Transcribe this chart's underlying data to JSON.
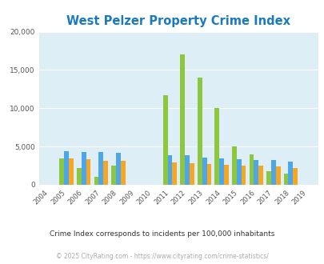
{
  "title": "West Pelzer Property Crime Index",
  "years": [
    2004,
    2005,
    2006,
    2007,
    2008,
    2009,
    2010,
    2011,
    2012,
    2013,
    2014,
    2015,
    2016,
    2017,
    2018,
    2019
  ],
  "west_pelzer": [
    0,
    3400,
    2200,
    1000,
    2500,
    0,
    0,
    11700,
    17000,
    14000,
    10000,
    5000,
    4000,
    1800,
    1500,
    0
  ],
  "south_carolina": [
    0,
    4400,
    4300,
    4300,
    4200,
    0,
    0,
    3900,
    3900,
    3600,
    3500,
    3300,
    3200,
    3200,
    3000,
    0
  ],
  "national": [
    0,
    3500,
    3300,
    3100,
    3100,
    0,
    0,
    2900,
    2800,
    2700,
    2600,
    2500,
    2500,
    2400,
    2200,
    0
  ],
  "ylim": [
    0,
    20000
  ],
  "yticks": [
    0,
    5000,
    10000,
    15000,
    20000
  ],
  "bar_width": 0.27,
  "color_wp": "#8dc63f",
  "color_sc": "#4da6e8",
  "color_nat": "#f5a623",
  "bg_color": "#ddeef6",
  "grid_color": "#ffffff",
  "title_color": "#1a7abf",
  "subtitle": "Crime Index corresponds to incidents per 100,000 inhabitants",
  "footer": "© 2025 CityRating.com - https://www.cityrating.com/crime-statistics/",
  "subtitle_color": "#333333",
  "footer_color": "#aaaaaa"
}
